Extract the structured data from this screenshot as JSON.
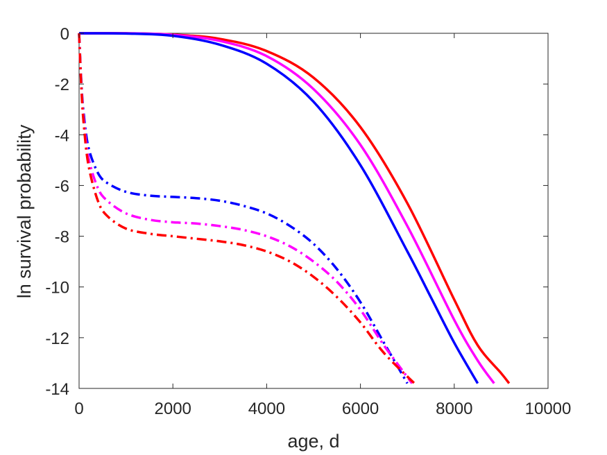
{
  "chart_data": {
    "type": "line",
    "title": "",
    "xlabel": "age, d",
    "ylabel": "ln survival probability",
    "xlim": [
      0,
      10000
    ],
    "ylim": [
      -14,
      0
    ],
    "xticks": [
      0,
      2000,
      4000,
      6000,
      8000,
      10000
    ],
    "yticks": [
      0,
      -2,
      -4,
      -6,
      -8,
      -10,
      -12,
      -14
    ],
    "grid": false,
    "legend": "none",
    "series": [
      {
        "color": "#ff0000",
        "style": "solid",
        "x": [
          0,
          1000,
          2000,
          3000,
          4000,
          5000,
          6000,
          7000,
          8000,
          8500,
          9000,
          9170
        ],
        "y": [
          0,
          0,
          -0.05,
          -0.22,
          -0.7,
          -1.75,
          -3.7,
          -6.7,
          -10.5,
          -12.3,
          -13.4,
          -13.8
        ]
      },
      {
        "color": "#ff00ff",
        "style": "solid",
        "x": [
          0,
          1000,
          2000,
          3000,
          4000,
          5000,
          6000,
          7000,
          8000,
          8500,
          8850
        ],
        "y": [
          0,
          0,
          -0.06,
          -0.3,
          -0.9,
          -2.2,
          -4.4,
          -7.6,
          -11.3,
          -12.9,
          -13.8
        ]
      },
      {
        "color": "#0000ff",
        "style": "solid",
        "x": [
          0,
          1000,
          2000,
          3000,
          4000,
          5000,
          6000,
          7000,
          7500,
          8000,
          8500
        ],
        "y": [
          0,
          -0.01,
          -0.1,
          -0.45,
          -1.2,
          -2.7,
          -5.2,
          -8.6,
          -10.4,
          -12.2,
          -13.8
        ]
      },
      {
        "color": "#0000ff",
        "style": "dashdot",
        "x": [
          0,
          50,
          100,
          200,
          400,
          600,
          1000,
          1500,
          2000,
          2500,
          3000,
          3500,
          4000,
          4500,
          5000,
          5500,
          6000,
          6500,
          7000
        ],
        "y": [
          0,
          -2.0,
          -3.2,
          -4.5,
          -5.5,
          -5.9,
          -6.25,
          -6.4,
          -6.45,
          -6.5,
          -6.6,
          -6.8,
          -7.1,
          -7.6,
          -8.3,
          -9.3,
          -10.6,
          -12.2,
          -13.8
        ]
      },
      {
        "color": "#ff00ff",
        "style": "dashdot",
        "x": [
          0,
          50,
          100,
          200,
          400,
          600,
          1000,
          1500,
          2000,
          2500,
          3000,
          3500,
          4000,
          4500,
          5000,
          5500,
          6000,
          6500,
          7100
        ],
        "y": [
          0,
          -2.1,
          -3.4,
          -4.9,
          -6.1,
          -6.6,
          -7.1,
          -7.35,
          -7.45,
          -7.5,
          -7.6,
          -7.75,
          -8.0,
          -8.4,
          -9.0,
          -9.8,
          -10.9,
          -12.3,
          -13.8
        ]
      },
      {
        "color": "#ff0000",
        "style": "dashdot",
        "x": [
          0,
          50,
          100,
          200,
          400,
          600,
          1000,
          1500,
          2000,
          2500,
          3000,
          3500,
          4000,
          4500,
          5000,
          5500,
          6000,
          6500,
          7150
        ],
        "y": [
          0,
          -2.2,
          -3.6,
          -5.2,
          -6.6,
          -7.2,
          -7.7,
          -7.9,
          -8.0,
          -8.1,
          -8.2,
          -8.35,
          -8.6,
          -9.0,
          -9.6,
          -10.4,
          -11.4,
          -12.6,
          -13.8
        ]
      }
    ]
  }
}
